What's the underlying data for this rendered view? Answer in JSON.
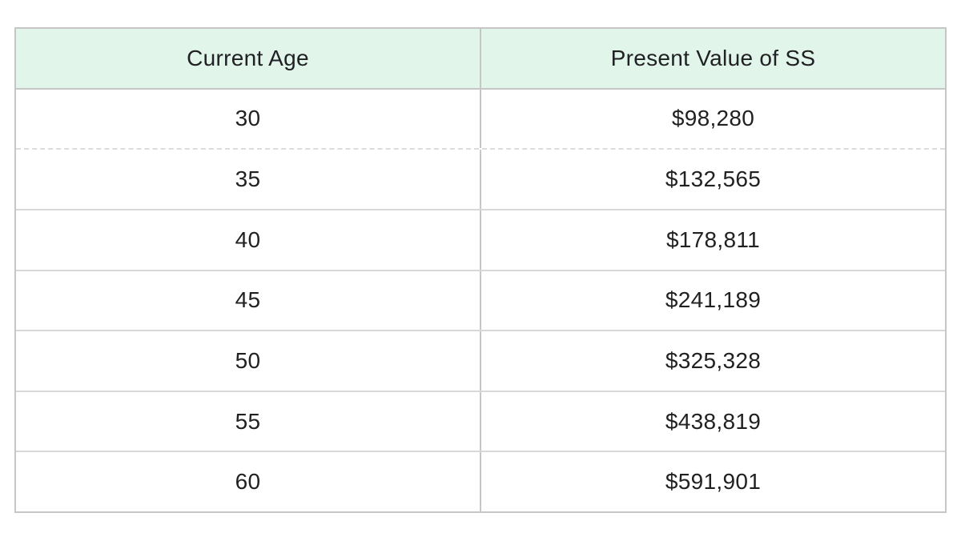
{
  "table": {
    "header": {
      "col1": "Current Age",
      "col2": "Present Value of SS"
    },
    "rows": [
      {
        "age": "30",
        "value": "$98,280"
      },
      {
        "age": "35",
        "value": "$132,565"
      },
      {
        "age": "40",
        "value": "$178,811"
      },
      {
        "age": "45",
        "value": "$241,189"
      },
      {
        "age": "50",
        "value": "$325,328"
      },
      {
        "age": "55",
        "value": "$438,819"
      },
      {
        "age": "60",
        "value": "$591,901"
      }
    ]
  },
  "colors": {
    "header_background": "#e2f5ea",
    "outer_border": "#c6c6c6",
    "row_divider": "#d8d8d8",
    "text": "#212121",
    "page_background": "#ffffff"
  },
  "chart_data": {
    "type": "table",
    "title": "",
    "columns": [
      "Current Age",
      "Present Value of SS"
    ],
    "categories": [
      30,
      35,
      40,
      45,
      50,
      55,
      60
    ],
    "values": [
      98280,
      132565,
      178811,
      241189,
      325328,
      438819,
      591901
    ],
    "rows": [
      [
        "30",
        "$98,280"
      ],
      [
        "35",
        "$132,565"
      ],
      [
        "40",
        "$178,811"
      ],
      [
        "45",
        "$241,189"
      ],
      [
        "50",
        "$325,328"
      ],
      [
        "55",
        "$438,819"
      ],
      [
        "60",
        "$591,901"
      ]
    ]
  }
}
